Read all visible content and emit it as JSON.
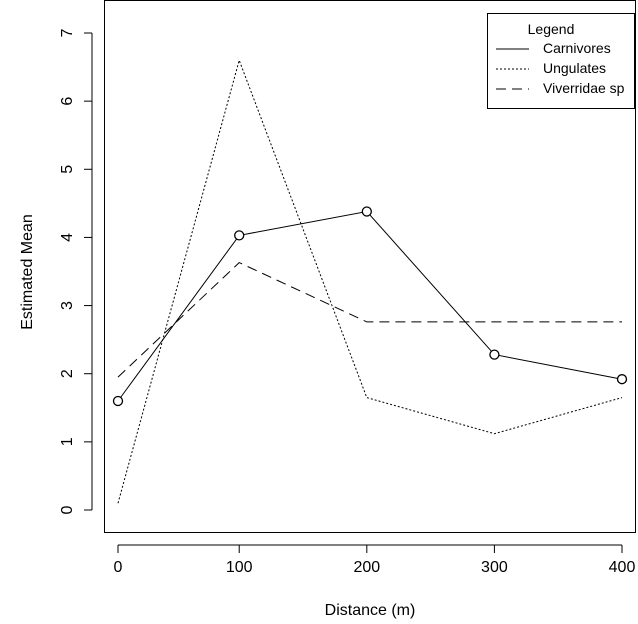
{
  "chart_data": {
    "type": "line",
    "xlabel": "Distance (m)",
    "ylabel": "Estimated Mean",
    "xlim": [
      5,
      400
    ],
    "ylim": [
      0,
      7
    ],
    "x_ticks": [
      "0",
      "100",
      "200",
      "300",
      "400"
    ],
    "y_ticks": [
      "0",
      "1",
      "2",
      "3",
      "4",
      "5",
      "6",
      "7"
    ],
    "legend": {
      "title": "Legend",
      "position": "top-right"
    },
    "series": [
      {
        "name": "Carnivores",
        "style": "solid",
        "markers": true,
        "x": [
          5,
          100,
          200,
          300,
          400
        ],
        "y": [
          1.6,
          4.03,
          4.38,
          2.28,
          1.92
        ]
      },
      {
        "name": "Ungulates",
        "style": "dotted",
        "markers": false,
        "x": [
          5,
          100,
          200,
          300,
          400
        ],
        "y": [
          0.1,
          6.6,
          1.65,
          1.12,
          1.65
        ]
      },
      {
        "name": "Viverridae sp",
        "style": "dashed",
        "markers": false,
        "x": [
          5,
          100,
          200,
          300,
          400
        ],
        "y": [
          1.95,
          3.63,
          2.76,
          2.76,
          2.76
        ]
      }
    ]
  }
}
